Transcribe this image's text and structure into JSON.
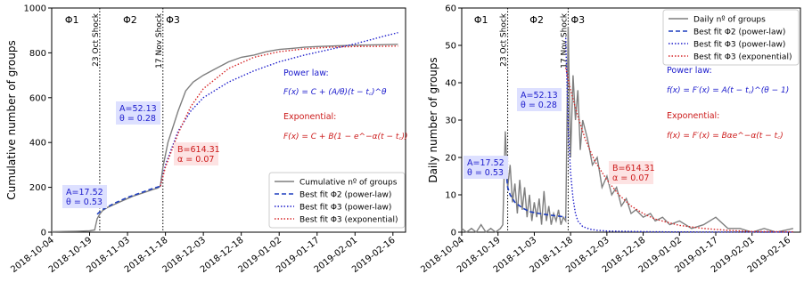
{
  "chart_data": [
    {
      "type": "line",
      "ylabel": "Cumulative number of groups",
      "ylim": [
        0,
        1000
      ],
      "yticks": [
        "0",
        "200",
        "400",
        "600",
        "800",
        "1000"
      ],
      "xtick_labels": [
        "2018-10-04",
        "2018-10-19",
        "2018-11-03",
        "2018-11-18",
        "2018-12-03",
        "2018-12-18",
        "2019-01-02",
        "2019-01-17",
        "2019-02-01",
        "2019-02-16"
      ],
      "phases": [
        "Φ1",
        "Φ2",
        "Φ3"
      ],
      "shocks": [
        "23 Oct Shock",
        "17 Nov Shock"
      ],
      "legend": {
        "position": "lower right",
        "entries": [
          "Cumulative nº of groups",
          "Best fit Φ2 (power-law)",
          "Best fit Φ3 (power-law)",
          "Best fit Φ3 (exponential)"
        ]
      },
      "annotations": {
        "phi1_box": [
          "A=17.52",
          "θ = 0.53"
        ],
        "phi2_box": [
          "A=52.13",
          "θ = 0.28"
        ],
        "phi3_box": [
          "B=614.31",
          "α = 0.07"
        ],
        "powerlaw_title": "Power law:",
        "powerlaw_formula": "F(x) = C + (A/θ)(t − t꜀)^θ",
        "exp_title": "Exponential:",
        "exp_formula": "F(x) = C + B(1 − e^−α(t − t꜀))"
      },
      "series": [
        {
          "name": "Cumulative nº of groups",
          "color": "#7f7f7f",
          "x": [
            0,
            5,
            10,
            15,
            17,
            18,
            19,
            20,
            22,
            25,
            28,
            32,
            36,
            40,
            42,
            43,
            44,
            46,
            48,
            50,
            53,
            56,
            60,
            65,
            70,
            75,
            80,
            85,
            90,
            95,
            100,
            105,
            110,
            115,
            120,
            125,
            130,
            137
          ],
          "values": [
            2,
            3,
            4,
            6,
            10,
            60,
            80,
            95,
            110,
            125,
            140,
            160,
            175,
            190,
            197,
            205,
            290,
            400,
            470,
            540,
            630,
            670,
            700,
            730,
            760,
            780,
            790,
            805,
            815,
            820,
            825,
            828,
            830,
            832,
            834,
            835,
            836,
            838
          ]
        },
        {
          "name": "Best fit Φ2 (power-law)",
          "color": "#1f3fbf",
          "x": [
            18,
            20,
            25,
            30,
            35,
            40,
            43
          ],
          "values": [
            80,
            100,
            130,
            155,
            175,
            195,
            205
          ]
        },
        {
          "name": "Best fit Φ3 (power-law)",
          "color": "#1f1fcc",
          "x": [
            43,
            45,
            50,
            55,
            60,
            70,
            80,
            90,
            100,
            110,
            120,
            130,
            137
          ],
          "values": [
            205,
            300,
            450,
            540,
            600,
            670,
            720,
            760,
            790,
            815,
            840,
            870,
            890
          ]
        },
        {
          "name": "Best fit Φ3 (exponential)",
          "color": "#d62728",
          "x": [
            43,
            45,
            50,
            55,
            60,
            70,
            80,
            90,
            100,
            110,
            120,
            130,
            137
          ],
          "values": [
            205,
            290,
            440,
            560,
            640,
            730,
            780,
            805,
            818,
            825,
            828,
            829,
            830
          ]
        }
      ]
    },
    {
      "type": "line",
      "ylabel": "Daily number of groups",
      "ylim": [
        0,
        60
      ],
      "yticks": [
        "0",
        "10",
        "20",
        "30",
        "40",
        "50",
        "60"
      ],
      "xtick_labels": [
        "2018-10-04",
        "2018-10-19",
        "2018-11-03",
        "2018-11-18",
        "2018-12-03",
        "2018-12-18",
        "2019-01-02",
        "2019-01-17",
        "2019-02-01",
        "2019-02-16"
      ],
      "phases": [
        "Φ1",
        "Φ2",
        "Φ3"
      ],
      "shocks": [
        "23 Oct Shock",
        "17 Nov Shock"
      ],
      "legend": {
        "position": "upper right",
        "entries": [
          "Daily nº of groups",
          "Best fit Φ2 (power-law)",
          "Best fit Φ3 (power-law)",
          "Best fit Φ3 (exponential)"
        ]
      },
      "annotations": {
        "phi1_box": [
          "A=17.52",
          "θ = 0.53"
        ],
        "phi2_box": [
          "A=52.13",
          "θ = 0.28"
        ],
        "phi3_box": [
          "B=614.31",
          "α = 0.07"
        ],
        "powerlaw_title": "Power law:",
        "powerlaw_formula": "f(x) = F′(x) = A(t − t꜀)^(θ − 1)",
        "exp_title": "Exponential:",
        "exp_formula": "f(x) = F′(x) = Bαe^−α(t − t꜀)"
      },
      "series": [
        {
          "name": "Daily nº of groups",
          "color": "#7f7f7f",
          "x": [
            0,
            2,
            4,
            6,
            8,
            10,
            12,
            14,
            16,
            17,
            18,
            19,
            20,
            21,
            22,
            23,
            24,
            25,
            26,
            27,
            28,
            29,
            30,
            31,
            32,
            33,
            34,
            35,
            36,
            37,
            38,
            39,
            40,
            41,
            42,
            43,
            44,
            45,
            46,
            47,
            48,
            49,
            50,
            52,
            54,
            56,
            58,
            60,
            62,
            64,
            66,
            68,
            70,
            72,
            75,
            78,
            80,
            83,
            86,
            90,
            95,
            100,
            105,
            110,
            115,
            120,
            125,
            130,
            137
          ],
          "values": [
            1,
            0,
            1,
            0,
            2,
            0,
            1,
            0,
            1,
            2,
            27,
            12,
            18,
            8,
            13,
            5,
            14,
            6,
            12,
            4,
            10,
            3,
            8,
            4,
            9,
            2,
            11,
            3,
            7,
            2,
            5,
            3,
            6,
            2,
            4,
            3,
            55,
            20,
            42,
            30,
            38,
            22,
            30,
            25,
            18,
            20,
            12,
            15,
            10,
            12,
            7,
            9,
            5,
            6,
            4,
            5,
            3,
            4,
            2,
            3,
            1,
            2,
            4,
            1,
            1,
            0,
            1,
            0,
            1
          ]
        },
        {
          "name": "Best fit Φ2 (power-law)",
          "color": "#1f3fbf",
          "x": [
            18,
            19,
            20,
            22,
            25,
            28,
            32,
            36,
            40,
            43
          ],
          "values": [
            18,
            12,
            10,
            8,
            6.5,
            5.5,
            5,
            4.6,
            4.3,
            4
          ]
        },
        {
          "name": "Best fit Φ3 (power-law)",
          "color": "#1f1fcc",
          "x": [
            43,
            44,
            45,
            46,
            47,
            48,
            50,
            53,
            56,
            60,
            70,
            80,
            100,
            137
          ],
          "values": [
            52,
            28,
            16,
            9,
            5,
            3,
            1.5,
            0.8,
            0.5,
            0.3,
            0.2,
            0.1,
            0.05,
            0.02
          ]
        },
        {
          "name": "Best fit Φ3 (exponential)",
          "color": "#d62728",
          "x": [
            43,
            45,
            48,
            51,
            55,
            60,
            65,
            70,
            75,
            80,
            90,
            100,
            110,
            120,
            137
          ],
          "values": [
            44,
            38,
            31,
            25,
            19,
            14,
            10,
            7,
            5,
            3.5,
            1.8,
            1,
            0.5,
            0.2,
            0.1
          ]
        }
      ]
    }
  ]
}
